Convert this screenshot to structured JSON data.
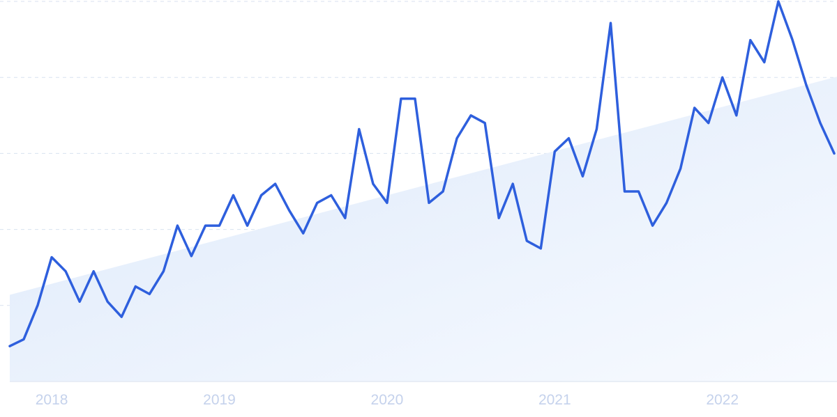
{
  "chart_data": {
    "type": "line",
    "title": "",
    "xlabel": "",
    "ylabel": "",
    "x_tick_labels": [
      "2018",
      "2019",
      "2020",
      "2021",
      "2022"
    ],
    "grid": "horizontal-dashed",
    "legend": "none",
    "ylim": [
      0,
      100
    ],
    "series": [
      {
        "x": [
          "2017-10",
          "2017-11",
          "2017-12",
          "2018-01",
          "2018-02",
          "2018-03",
          "2018-04",
          "2018-05",
          "2018-06",
          "2018-07",
          "2018-08",
          "2018-09",
          "2018-10",
          "2018-11",
          "2018-12",
          "2019-01",
          "2019-02",
          "2019-03",
          "2019-04",
          "2019-05",
          "2019-06",
          "2019-07",
          "2019-08",
          "2019-09",
          "2019-10",
          "2019-11",
          "2019-12",
          "2020-01",
          "2020-02",
          "2020-03",
          "2020-04",
          "2020-05",
          "2020-06",
          "2020-07",
          "2020-08",
          "2020-09",
          "2020-10",
          "2020-11",
          "2020-12",
          "2021-01",
          "2021-02",
          "2021-03",
          "2021-04",
          "2021-05",
          "2021-06",
          "2021-07",
          "2021-08",
          "2021-09",
          "2021-10",
          "2021-11",
          "2021-12",
          "2022-01",
          "2022-02",
          "2022-03",
          "2022-04",
          "2022-05",
          "2022-06",
          "2022-07",
          "2022-08",
          "2022-09"
        ],
        "values": [
          9.3,
          11.1,
          20.1,
          32.7,
          29.0,
          21.0,
          29.0,
          21.0,
          17.0,
          25.0,
          23.0,
          29.0,
          41.0,
          33.0,
          41.0,
          41.0,
          49.0,
          41.0,
          49.0,
          52.0,
          45.0,
          39.0,
          47.0,
          49.0,
          43.0,
          66.4,
          52.0,
          47.0,
          74.4,
          74.4,
          47.0,
          50.0,
          64.0,
          70.0,
          68.0,
          43.0,
          52.0,
          37.0,
          35.0,
          60.5,
          64.0,
          54.0,
          66.4,
          94.3,
          50.0,
          50.0,
          41.0,
          47.0,
          56.0,
          72.0,
          68.0,
          80.0,
          70.0,
          89.8,
          84.0,
          100.0,
          90.0,
          78.0,
          68.0,
          60.0
        ]
      }
    ],
    "trend": {
      "start": 22.8,
      "end": 80.0
    },
    "colors": {
      "line": "#2e5fdd",
      "trend_fill_dark": "#dde9fa",
      "trend_fill_light": "#f7faff",
      "grid": "#d8e2ef",
      "tick_label": "#c5d2ec",
      "axis": "#e3e9f3"
    }
  }
}
